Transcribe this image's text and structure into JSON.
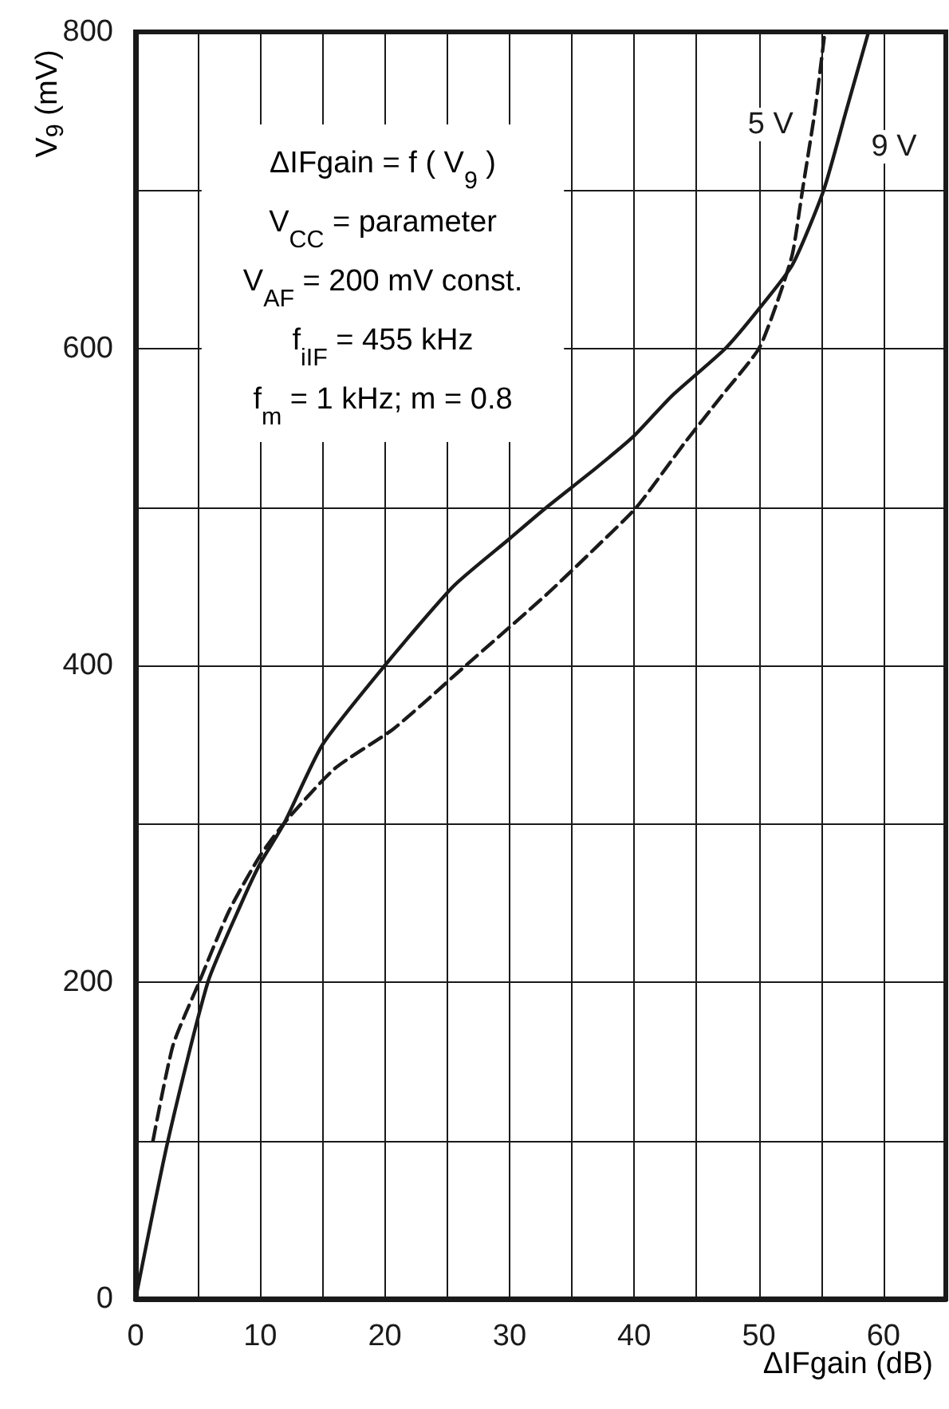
{
  "chart_data": {
    "type": "line",
    "xlabel": "ΔIFgain (dB)",
    "ylabel": "V$_{9}$ (mV)",
    "annotations": [
      "ΔIFgain = f ( V$_{9}$ )",
      "V$_{CC}$ = parameter",
      "V$_{AF}$ = 200 mV const.",
      "f$_{iIF}$ = 455 kHz",
      "f$_{m}$ = 1 kHz; m = 0.8"
    ],
    "series": [
      {
        "name": "5 V",
        "color": "#1a1a1a",
        "line_style": "dashed",
        "x": [
          1.4,
          3,
          5.1,
          7.5,
          10,
          12.2,
          16,
          20.7,
          26.5,
          33,
          37,
          40.2,
          44,
          47,
          50,
          51.5,
          52.7,
          53.5,
          54.5,
          55.3
        ],
        "values": [
          100,
          160,
          200,
          245,
          280,
          303,
          335,
          360,
          400,
          445,
          475,
          500,
          540,
          570,
          600,
          630,
          660,
          700,
          750,
          800
        ]
      },
      {
        "name": "9 V",
        "color": "#1a1a1a",
        "line_style": "solid",
        "x": [
          0,
          2.6,
          5.8,
          8.5,
          10,
          11.9,
          15,
          20,
          25.5,
          30,
          33,
          37,
          40,
          43,
          47.3,
          50,
          52.7,
          55.2,
          57,
          58.8
        ],
        "values": [
          0,
          100,
          200,
          250,
          275,
          300,
          350,
          400,
          450,
          480,
          500,
          525,
          545,
          570,
          600,
          625,
          653,
          700,
          750,
          800
        ]
      }
    ],
    "xlim": [
      0,
      65
    ],
    "xticks": [
      0,
      {
        "value": 5,
        "label": null
      },
      10,
      {
        "value": 15,
        "label": null
      },
      20,
      {
        "value": 25,
        "label": null
      },
      30,
      {
        "value": 35,
        "label": null
      },
      40,
      {
        "value": 45,
        "label": null
      },
      50,
      {
        "value": 55,
        "label": null
      },
      60
    ],
    "ylim": [
      0,
      800
    ],
    "yticks": [
      0,
      {
        "value": 100,
        "label": null
      },
      200,
      {
        "value": 300,
        "label": null
      },
      400,
      {
        "value": 500,
        "label": null
      },
      600,
      {
        "value": 700,
        "label": null
      },
      800
    ],
    "grid": true,
    "legend": false,
    "marker": "none"
  }
}
